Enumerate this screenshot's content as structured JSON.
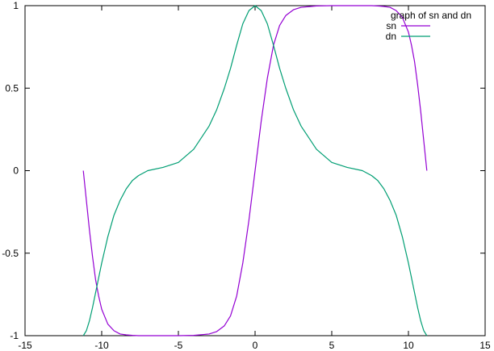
{
  "chart_data": {
    "type": "line",
    "title": "graph of sn and dn",
    "xlabel": "",
    "ylabel": "",
    "xlim": [
      -15,
      15
    ],
    "ylim": [
      -1,
      1
    ],
    "x_ticks": [
      -15,
      -10,
      -5,
      0,
      5,
      10,
      15
    ],
    "x_tick_labels": [
      "-15",
      "-10",
      "-5",
      "0",
      "5",
      "10",
      "15"
    ],
    "y_ticks": [
      -1,
      -0.5,
      0,
      0.5,
      1
    ],
    "y_tick_labels": [
      "-1",
      "-0.5",
      "0",
      "0.5",
      "1"
    ],
    "grid": false,
    "legend_position": "top-right",
    "series": [
      {
        "name": "sn",
        "color": "#9400d3",
        "x": [
          -11.2,
          -11.0,
          -10.8,
          -10.6,
          -10.4,
          -10.2,
          -10.0,
          -9.6,
          -9.2,
          -8.8,
          -8.4,
          -8.0,
          -7.6,
          -7.0,
          -6.0,
          -5.0,
          -4.0,
          -3.0,
          -2.5,
          -2.0,
          -1.6,
          -1.2,
          -0.8,
          -0.4,
          0.0,
          0.4,
          0.8,
          1.2,
          1.6,
          2.0,
          2.5,
          3.0,
          4.0,
          5.0,
          6.0,
          7.0,
          7.6,
          8.0,
          8.4,
          8.8,
          9.2,
          9.6,
          10.0,
          10.2,
          10.4,
          10.6,
          10.8,
          11.0,
          11.2
        ],
        "y": [
          0.0,
          -0.18,
          -0.36,
          -0.52,
          -0.66,
          -0.76,
          -0.84,
          -0.93,
          -0.97,
          -0.99,
          -0.995,
          -0.998,
          -1.0,
          -1.0,
          -1.0,
          -1.0,
          -0.998,
          -0.99,
          -0.975,
          -0.94,
          -0.88,
          -0.76,
          -0.56,
          -0.3,
          0.0,
          0.3,
          0.56,
          0.76,
          0.88,
          0.94,
          0.975,
          0.99,
          0.998,
          1.0,
          1.0,
          1.0,
          1.0,
          0.998,
          0.995,
          0.99,
          0.97,
          0.93,
          0.84,
          0.76,
          0.66,
          0.52,
          0.36,
          0.18,
          0.0
        ]
      },
      {
        "name": "dn",
        "color": "#009e73",
        "x": [
          -11.2,
          -11.0,
          -10.8,
          -10.6,
          -10.4,
          -10.2,
          -10.0,
          -9.6,
          -9.2,
          -8.8,
          -8.4,
          -8.0,
          -7.6,
          -7.0,
          -6.0,
          -5.0,
          -4.0,
          -3.0,
          -2.5,
          -2.0,
          -1.6,
          -1.2,
          -0.8,
          -0.4,
          0.0,
          0.4,
          0.8,
          1.2,
          1.6,
          2.0,
          2.5,
          3.0,
          4.0,
          5.0,
          6.0,
          7.0,
          7.6,
          8.0,
          8.4,
          8.8,
          9.2,
          9.6,
          10.0,
          10.2,
          10.4,
          10.6,
          10.8,
          11.0,
          11.2
        ],
        "y": [
          -1.0,
          -0.97,
          -0.91,
          -0.83,
          -0.74,
          -0.65,
          -0.56,
          -0.4,
          -0.27,
          -0.18,
          -0.11,
          -0.06,
          -0.03,
          0.0,
          0.02,
          0.05,
          0.13,
          0.27,
          0.37,
          0.5,
          0.62,
          0.76,
          0.89,
          0.97,
          1.0,
          0.97,
          0.89,
          0.76,
          0.62,
          0.5,
          0.37,
          0.27,
          0.13,
          0.05,
          0.02,
          0.0,
          -0.03,
          -0.06,
          -0.11,
          -0.18,
          -0.27,
          -0.4,
          -0.56,
          -0.65,
          -0.74,
          -0.83,
          -0.91,
          -0.97,
          -1.0
        ]
      }
    ]
  }
}
